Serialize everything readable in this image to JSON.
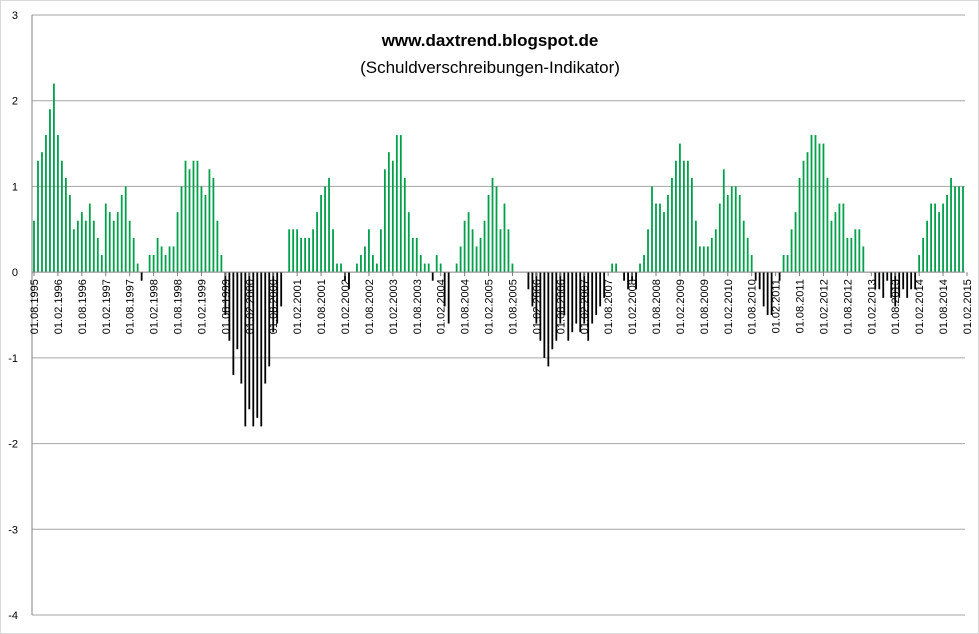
{
  "chart_data": {
    "type": "bar",
    "title": "www.daxtrend.blogspot.de",
    "subtitle": "(Schuldverschreibungen-Indikator)",
    "xlabel": "",
    "ylabel": "",
    "ylim": [
      -4,
      3
    ],
    "yticks": [
      "3",
      "2",
      "1",
      "0",
      "-1",
      "-2",
      "-3",
      "-4"
    ],
    "grid": true,
    "legend": "none",
    "colors": {
      "positive": "#00a04a",
      "negative": "#000000",
      "grid": "#a6a6a6",
      "axis": "#808080"
    },
    "x_start": "01.08.1995",
    "x_end": "01.03.2015",
    "x_tick_labels": [
      "01.08.1995",
      "01.02.1996",
      "01.08.1996",
      "01.02.1997",
      "01.08.1997",
      "01.02.1998",
      "01.08.1998",
      "01.02.1999",
      "01.08.1999",
      "01.02.2000",
      "01.08.2000",
      "01.02.2001",
      "01.08.2001",
      "01.02.2002",
      "01.08.2002",
      "01.02.2003",
      "01.08.2003",
      "01.02.2004",
      "01.08.2004",
      "01.02.2005",
      "01.08.2005",
      "01.02.2006",
      "01.08.2006",
      "01.02.2007",
      "01.08.2007",
      "01.02.2008",
      "01.08.2008",
      "01.02.2009",
      "01.08.2009",
      "01.02.2010",
      "01.08.2010",
      "01.02.2011",
      "01.08.2011",
      "01.02.2012",
      "01.08.2012",
      "01.02.2013",
      "01.08.2013",
      "01.02.2014",
      "01.08.2014",
      "01.02.2015"
    ],
    "values": [
      0.6,
      1.3,
      1.4,
      1.6,
      1.9,
      2.2,
      1.6,
      1.3,
      1.1,
      0.9,
      0.5,
      0.6,
      0.7,
      0.6,
      0.8,
      0.6,
      0.4,
      0.2,
      0.8,
      0.7,
      0.6,
      0.7,
      0.9,
      1.0,
      0.6,
      0.4,
      0.1,
      -0.1,
      0.0,
      0.2,
      0.2,
      0.4,
      0.3,
      0.2,
      0.3,
      0.3,
      0.7,
      1.0,
      1.3,
      1.2,
      1.3,
      1.3,
      1.0,
      0.9,
      1.2,
      1.1,
      0.6,
      0.2,
      -0.5,
      -0.8,
      -1.2,
      -0.9,
      -1.3,
      -1.8,
      -1.6,
      -1.8,
      -1.7,
      -1.8,
      -1.3,
      -1.1,
      -0.7,
      -0.6,
      -0.4,
      0.0,
      0.5,
      0.5,
      0.5,
      0.4,
      0.4,
      0.4,
      0.5,
      0.7,
      0.9,
      1.0,
      1.1,
      0.5,
      0.1,
      0.1,
      -0.1,
      -0.2,
      0.0,
      0.1,
      0.2,
      0.3,
      0.5,
      0.2,
      0.1,
      0.5,
      1.2,
      1.4,
      1.3,
      1.6,
      1.6,
      1.1,
      0.7,
      0.4,
      0.4,
      0.2,
      0.1,
      0.1,
      -0.1,
      0.2,
      0.1,
      -0.4,
      -0.6,
      0.0,
      0.1,
      0.3,
      0.6,
      0.7,
      0.5,
      0.3,
      0.4,
      0.6,
      0.9,
      1.1,
      1.0,
      0.5,
      0.8,
      0.5,
      0.1,
      0.0,
      0.0,
      0.0,
      -0.2,
      -0.4,
      -0.6,
      -0.8,
      -1.0,
      -1.1,
      -0.9,
      -0.8,
      -0.6,
      -0.5,
      -0.8,
      -0.7,
      -0.6,
      -0.7,
      -0.6,
      -0.8,
      -0.6,
      -0.5,
      -0.4,
      -0.3,
      0.0,
      0.1,
      0.1,
      0.0,
      -0.1,
      -0.2,
      -0.1,
      -0.2,
      0.1,
      0.2,
      0.5,
      1.0,
      0.8,
      0.8,
      0.7,
      0.9,
      1.1,
      1.3,
      1.5,
      1.3,
      1.3,
      1.1,
      0.6,
      0.3,
      0.3,
      0.3,
      0.4,
      0.5,
      0.8,
      1.2,
      0.9,
      1.0,
      1.0,
      0.9,
      0.6,
      0.4,
      0.2,
      -0.1,
      -0.2,
      -0.4,
      -0.5,
      -0.5,
      0.0,
      -0.1,
      0.2,
      0.2,
      0.5,
      0.7,
      1.1,
      1.3,
      1.4,
      1.6,
      1.6,
      1.5,
      1.5,
      1.1,
      0.6,
      0.7,
      0.8,
      0.8,
      0.4,
      0.4,
      0.5,
      0.5,
      0.3,
      0.0,
      0.0,
      -0.2,
      -0.2,
      -0.3,
      -0.1,
      -0.3,
      -0.4,
      -0.3,
      -0.2,
      -0.3,
      -0.2,
      -0.2,
      0.2,
      0.4,
      0.6,
      0.8,
      0.8,
      0.7,
      0.8,
      0.9,
      1.1,
      1.0,
      1.0,
      1.0
    ]
  }
}
